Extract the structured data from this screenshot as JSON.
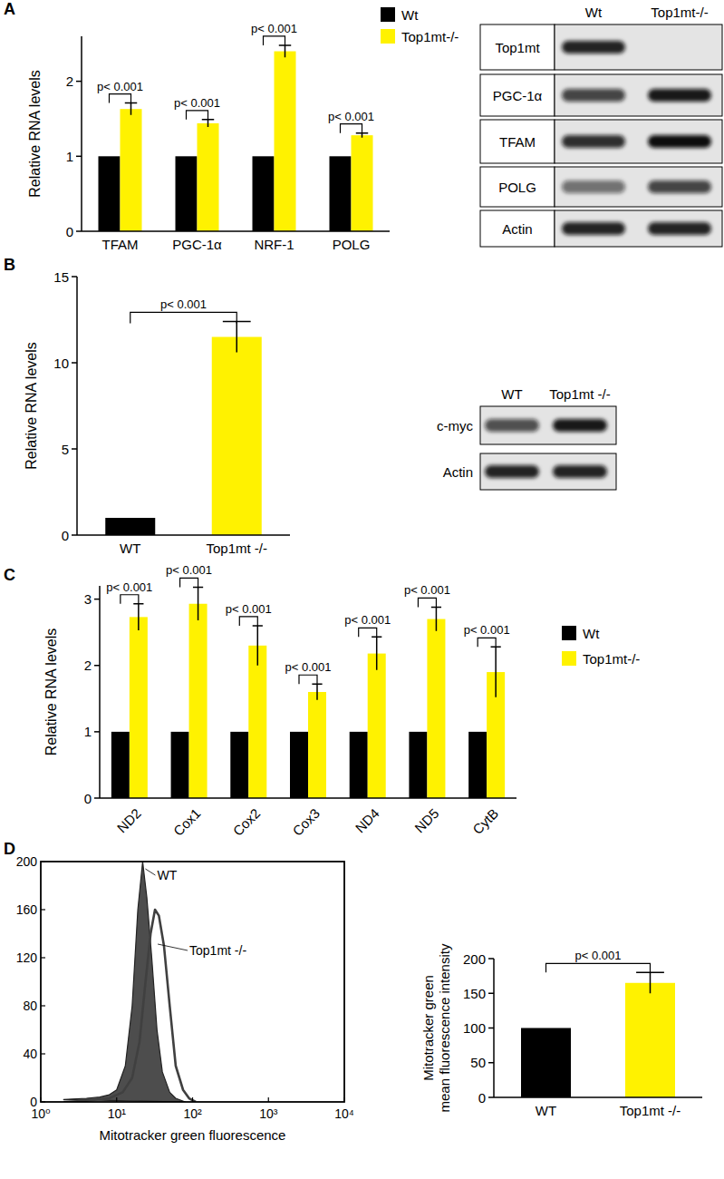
{
  "panel_labels": [
    "A",
    "B",
    "C",
    "D"
  ],
  "chart_data": [
    {
      "type": "bar",
      "categories": [
        "TFAM",
        "PGC-1α",
        "NRF-1",
        "POLG"
      ],
      "series": [
        {
          "name": "Wt",
          "color": "#000000",
          "values": [
            1,
            1,
            1,
            1
          ]
        },
        {
          "name": "Top1mt-/-",
          "color": "#fff200",
          "values": [
            1.63,
            1.44,
            2.4,
            1.28
          ],
          "errors": [
            0.08,
            0.05,
            0.08,
            0.03
          ]
        }
      ],
      "y_label": "Relative RNA levels",
      "ylim": [
        0,
        2.6
      ],
      "yticks": [
        0,
        1,
        2
      ],
      "legend": "right",
      "annotations": [
        "p< 0.001",
        "p< 0.001",
        "p< 0.001",
        "p< 0.001"
      ]
    },
    {
      "type": "bar",
      "categories": [
        "WT",
        "Top1mt -/-"
      ],
      "values": [
        1,
        11.5
      ],
      "errors": [
        null,
        0.9
      ],
      "colors": [
        "#000000",
        "#fff200"
      ],
      "y_label": "Relative RNA levels",
      "ylim": [
        0,
        15
      ],
      "yticks": [
        0,
        5,
        10,
        15
      ],
      "annotations": [
        "p< 0.001"
      ]
    },
    {
      "type": "bar",
      "categories": [
        "ND2",
        "Cox1",
        "Cox2",
        "Cox3",
        "ND4",
        "ND5",
        "CytB"
      ],
      "series": [
        {
          "name": "Wt",
          "color": "#000000",
          "values": [
            1,
            1,
            1,
            1,
            1,
            1,
            1
          ]
        },
        {
          "name": "Top1mt-/-",
          "color": "#fff200",
          "values": [
            2.73,
            2.93,
            2.3,
            1.6,
            2.18,
            2.7,
            1.9
          ],
          "errors": [
            0.2,
            0.25,
            0.3,
            0.12,
            0.25,
            0.18,
            0.38
          ]
        }
      ],
      "y_label": "Relative RNA levels",
      "ylim": [
        0,
        3.2
      ],
      "yticks": [
        0,
        1,
        2,
        3
      ],
      "legend": "right",
      "annotations": [
        "p< 0.001",
        "p< 0.001",
        "p< 0.001",
        "p< 0.001",
        "p< 0.001",
        "p< 0.001",
        "p< 0.001"
      ]
    },
    {
      "type": "line",
      "log": "x",
      "x_label": "Mitotracker green fluorescence",
      "xlim": [
        1,
        10000
      ],
      "xticks": [
        {
          "value": 1,
          "label": "10⁰"
        },
        {
          "value": 10,
          "label": "10¹"
        },
        {
          "value": 100,
          "label": "10²"
        },
        {
          "value": 1000,
          "label": "10³"
        },
        {
          "value": 10000,
          "label": "10⁴"
        }
      ],
      "ylim": [
        0,
        200
      ],
      "yticks": [
        0,
        40,
        80,
        120,
        160,
        200
      ],
      "series": [
        {
          "name": "WT",
          "type": "area",
          "color": "#4d4d4d",
          "x": [
            2,
            4,
            6,
            8,
            10,
            13,
            16,
            19,
            22,
            25,
            29,
            34,
            40,
            50,
            60,
            80
          ],
          "values": [
            2,
            3,
            4,
            6,
            10,
            30,
            80,
            160,
            200,
            170,
            120,
            60,
            25,
            8,
            3,
            0
          ]
        },
        {
          "name": "Top1mt -/-",
          "type": "line",
          "color": "#404040",
          "x": [
            2,
            4,
            8,
            12,
            16,
            20,
            24,
            28,
            32,
            36,
            42,
            50,
            60,
            75,
            90,
            110
          ],
          "values": [
            0,
            1,
            3,
            8,
            20,
            50,
            100,
            140,
            160,
            155,
            130,
            80,
            30,
            10,
            3,
            0
          ]
        }
      ]
    },
    {
      "type": "bar",
      "categories": [
        "WT",
        "Top1mt -/-"
      ],
      "values": [
        100,
        165
      ],
      "errors": [
        null,
        15
      ],
      "colors": [
        "#000000",
        "#fff200"
      ],
      "y_label": "Mitotracker green mean fluorescence intensity",
      "ylim": [
        0,
        200
      ],
      "yticks": [
        0,
        50,
        100,
        150,
        200
      ],
      "annotations": [
        "p< 0.001"
      ]
    }
  ],
  "blots": [
    {
      "columns": [
        "Wt",
        "Top1mt-/-"
      ],
      "rows": [
        "Top1mt",
        "PGC-1α",
        "TFAM",
        "POLG",
        "Actin"
      ]
    },
    {
      "columns": [
        "WT",
        "Top1mt -/-"
      ],
      "rows": [
        "c-myc",
        "Actin"
      ]
    }
  ]
}
